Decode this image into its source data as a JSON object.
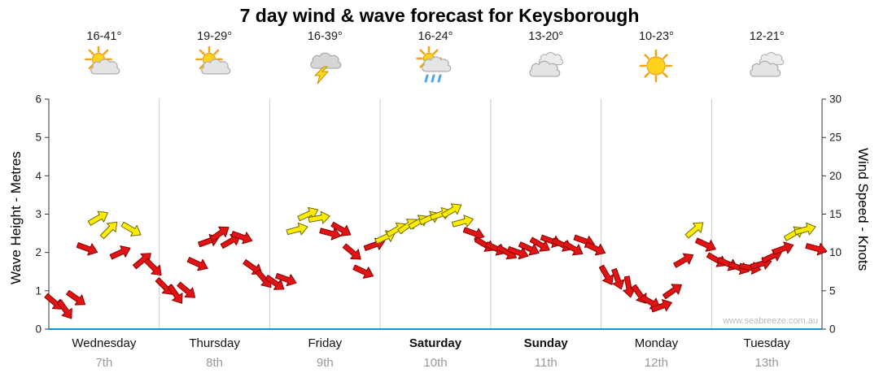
{
  "page": {
    "watermark": "www.seabreeze.com.au"
  },
  "chart_data": {
    "type": "scatter",
    "glyph": "wind-arrow",
    "title": "7 day wind & wave forecast for Keysborough",
    "left_axis": {
      "label": "Wave Height - Metres",
      "min": 0,
      "max": 6,
      "ticks": [
        0,
        1,
        2,
        3,
        4,
        5,
        6
      ]
    },
    "right_axis": {
      "label": "Wind Speed - Knots",
      "min": 0,
      "max": 30,
      "ticks": [
        0,
        5,
        10,
        15,
        20,
        25,
        30
      ]
    },
    "points_per_day": 10,
    "palette": {
      "red": "#e01414",
      "yellow": "#ffec00",
      "red_outline": "#8a0000",
      "yellow_outline": "#6b6b00",
      "axis_bottom": "#0099cc",
      "grid": "#cccccc"
    },
    "days": [
      {
        "name": "Wednesday",
        "date": "7th",
        "bold": false,
        "temp_range": "16-41°",
        "icon": "sun-cloud",
        "knots": [
          3.5,
          2.5,
          4,
          10.5,
          14.5,
          13,
          10,
          13,
          9,
          8
        ],
        "colors": [
          "r",
          "r",
          "r",
          "r",
          "y",
          "y",
          "r",
          "y",
          "r",
          "r"
        ],
        "dirs": [
          40,
          55,
          35,
          20,
          -30,
          -45,
          -25,
          30,
          -40,
          45
        ]
      },
      {
        "name": "Thursday",
        "date": "8th",
        "bold": false,
        "temp_range": "19-29°",
        "icon": "sun-cloud",
        "knots": [
          5.5,
          4.5,
          5,
          8.5,
          11.5,
          12.5,
          11.5,
          12,
          8,
          6.5
        ],
        "colors": [
          "r",
          "r",
          "r",
          "r",
          "r",
          "r",
          "r",
          "r",
          "r",
          "r"
        ],
        "dirs": [
          45,
          55,
          40,
          25,
          -20,
          -35,
          -30,
          20,
          35,
          50
        ]
      },
      {
        "name": "Friday",
        "date": "9th",
        "bold": false,
        "temp_range": "16-39°",
        "icon": "storm",
        "knots": [
          6,
          6.5,
          13,
          15,
          14.5,
          12.5,
          13,
          10,
          7.5,
          11
        ],
        "colors": [
          "r",
          "r",
          "y",
          "y",
          "y",
          "r",
          "r",
          "r",
          "r",
          "r"
        ],
        "dirs": [
          35,
          20,
          -15,
          -25,
          -10,
          15,
          30,
          40,
          25,
          -20
        ]
      },
      {
        "name": "Saturday",
        "date": "10th",
        "bold": true,
        "temp_range": "16-24°",
        "icon": "sun-rain",
        "knots": [
          12,
          13,
          13.5,
          14,
          14.5,
          15,
          15.5,
          14,
          12.5,
          11
        ],
        "colors": [
          "y",
          "y",
          "y",
          "y",
          "y",
          "y",
          "y",
          "y",
          "r",
          "r"
        ],
        "dirs": [
          -25,
          -30,
          -35,
          -30,
          -25,
          -20,
          -30,
          -15,
          20,
          30
        ]
      },
      {
        "name": "Sunday",
        "date": "11th",
        "bold": true,
        "temp_range": "13-20°",
        "icon": "cloudy",
        "knots": [
          10.5,
          10,
          10,
          10.5,
          11,
          11.5,
          11,
          10.5,
          11.5,
          10.5
        ],
        "colors": [
          "r",
          "r",
          "r",
          "r",
          "r",
          "r",
          "r",
          "r",
          "r",
          "r"
        ],
        "dirs": [
          25,
          30,
          20,
          25,
          30,
          20,
          25,
          30,
          20,
          25
        ]
      },
      {
        "name": "Monday",
        "date": "12th",
        "bold": false,
        "temp_range": "10-23°",
        "icon": "sunny",
        "knots": [
          7,
          6.5,
          5.5,
          4.5,
          3.5,
          3,
          5,
          9,
          13,
          11
        ],
        "colors": [
          "r",
          "r",
          "r",
          "r",
          "r",
          "r",
          "r",
          "r",
          "y",
          "r"
        ],
        "dirs": [
          60,
          70,
          80,
          55,
          30,
          -20,
          -35,
          -30,
          -40,
          25
        ]
      },
      {
        "name": "Tuesday",
        "date": "13th",
        "bold": false,
        "temp_range": "12-21°",
        "icon": "cloudy",
        "knots": [
          9,
          8.5,
          8,
          8,
          8.5,
          9.5,
          10.5,
          12.5,
          13,
          10.5
        ],
        "colors": [
          "r",
          "r",
          "r",
          "r",
          "r",
          "r",
          "r",
          "y",
          "y",
          "r"
        ],
        "dirs": [
          30,
          25,
          20,
          10,
          -15,
          -25,
          -20,
          -30,
          -15,
          15
        ]
      }
    ]
  }
}
